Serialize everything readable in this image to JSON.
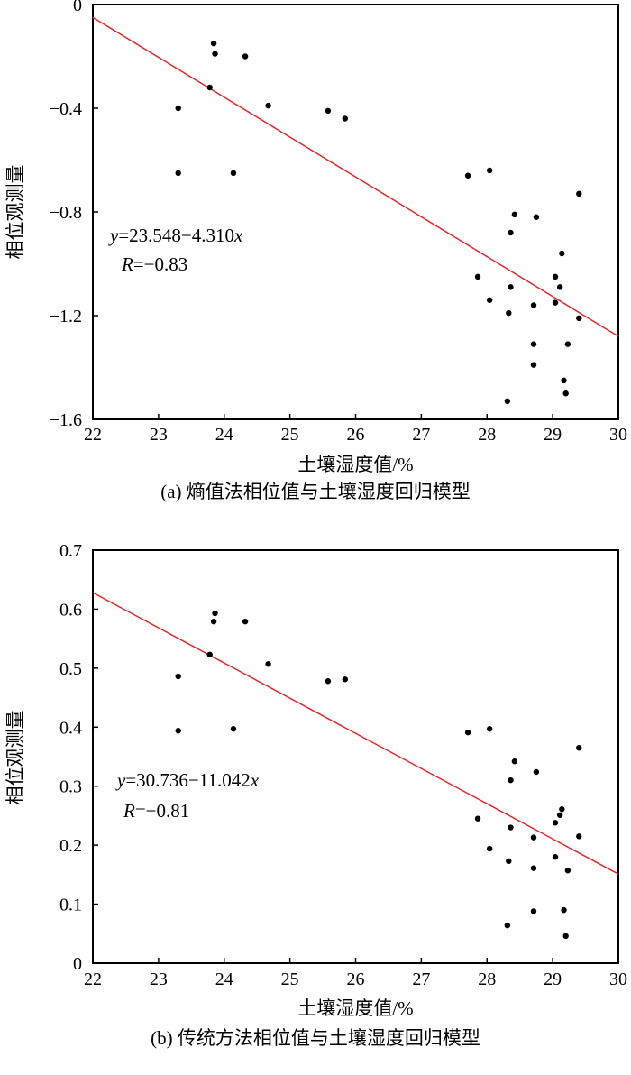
{
  "chart_data": [
    {
      "type": "scatter",
      "caption": "(a) 熵值法相位值与土壤湿度回归模型",
      "xlabel": "土壤湿度值/%",
      "ylabel": "相位观测量",
      "xlim": [
        22,
        30
      ],
      "ylim": [
        -1.6,
        0
      ],
      "xticks": [
        "22",
        "23",
        "24",
        "25",
        "26",
        "27",
        "28",
        "29",
        "30"
      ],
      "xtick_values": [
        22,
        23,
        24,
        25,
        26,
        27,
        28,
        29,
        30
      ],
      "yticks": [
        "0",
        "−0.4",
        "−0.8",
        "−1.2",
        "−1.6"
      ],
      "ytick_values": [
        0,
        -0.4,
        -0.8,
        -1.2,
        -1.6
      ],
      "grid": false,
      "equation": {
        "y": "y",
        "eq": "=23.548−4.310",
        "x": "x",
        "r": "R",
        "r_eq": "=−0.83"
      },
      "fit_line": {
        "x": [
          22,
          30
        ],
        "y": [
          -0.05,
          -1.28
        ],
        "color": "#e8262a"
      },
      "points": {
        "x": [
          23.3,
          23.3,
          23.84,
          23.86,
          24.32,
          23.78,
          24.14,
          24.67,
          25.58,
          25.84,
          27.71,
          28.04,
          29.4,
          28.42,
          28.75,
          28.36,
          29.14,
          29.11,
          29.04,
          27.86,
          28.36,
          28.71,
          29.4,
          28.04,
          28.33,
          28.71,
          29.04,
          29.23,
          28.71,
          29.17,
          28.31,
          29.2
        ],
        "y": [
          -0.4,
          -0.65,
          -0.15,
          -0.19,
          -0.2,
          -0.32,
          -0.65,
          -0.39,
          -0.41,
          -0.44,
          -0.66,
          -0.64,
          -0.73,
          -0.81,
          -0.82,
          -0.88,
          -0.96,
          -1.09,
          -1.05,
          -1.05,
          -1.09,
          -1.16,
          -1.21,
          -1.14,
          -1.19,
          -1.31,
          -1.15,
          -1.31,
          -1.39,
          -1.45,
          -1.53,
          -1.5
        ]
      }
    },
    {
      "type": "scatter",
      "caption": "(b) 传统方法相位值与土壤湿度回归模型",
      "xlabel": "土壤湿度值/%",
      "ylabel": "相位观测量",
      "xlim": [
        22,
        30
      ],
      "ylim": [
        0,
        0.7
      ],
      "xticks": [
        "22",
        "23",
        "24",
        "25",
        "26",
        "27",
        "28",
        "29",
        "30"
      ],
      "xtick_values": [
        22,
        23,
        24,
        25,
        26,
        27,
        28,
        29,
        30
      ],
      "yticks": [
        "0.7",
        "0.6",
        "0.5",
        "0.4",
        "0.3",
        "0.2",
        "0.1",
        "0"
      ],
      "ytick_values": [
        0.7,
        0.6,
        0.5,
        0.4,
        0.3,
        0.2,
        0.1,
        0
      ],
      "grid": false,
      "equation": {
        "y": "y",
        "eq": "=30.736−11.042",
        "x": "x",
        "r": "R",
        "r_eq": "=−0.81"
      },
      "fit_line": {
        "x": [
          22,
          30
        ],
        "y": [
          0.628,
          0.151
        ],
        "color": "#e8262a"
      },
      "points": {
        "x": [
          23.3,
          23.3,
          23.84,
          23.86,
          24.32,
          23.78,
          24.14,
          24.67,
          25.58,
          25.84,
          27.71,
          28.04,
          29.4,
          28.42,
          28.75,
          28.36,
          29.14,
          29.11,
          29.04,
          27.86,
          28.36,
          28.71,
          29.4,
          28.04,
          28.33,
          28.71,
          29.04,
          29.23,
          28.71,
          29.17,
          28.31,
          29.2
        ],
        "y": [
          0.486,
          0.394,
          0.579,
          0.593,
          0.579,
          0.523,
          0.397,
          0.507,
          0.478,
          0.481,
          0.391,
          0.397,
          0.365,
          0.342,
          0.324,
          0.31,
          0.261,
          0.251,
          0.238,
          0.245,
          0.23,
          0.213,
          0.215,
          0.194,
          0.173,
          0.161,
          0.18,
          0.157,
          0.088,
          0.09,
          0.064,
          0.046
        ]
      }
    }
  ]
}
